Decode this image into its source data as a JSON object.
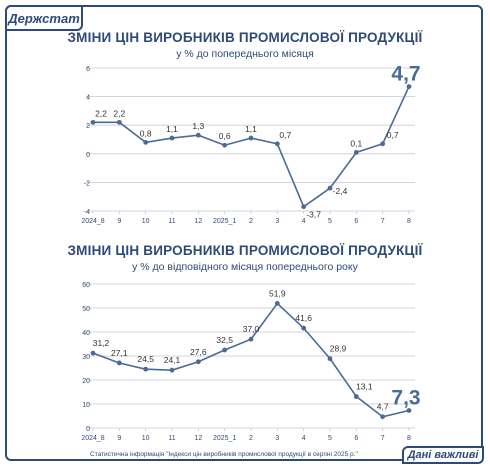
{
  "brand": "Держстат",
  "footnote": "Статистична інформація \"Індекси цін виробників промислової продукції в серпні 2025 р.\"",
  "badge": "Дані важливі",
  "colors": {
    "primary": "#2e4a78",
    "line": "#4a6b95",
    "grid": "#c5c9d2"
  },
  "chart_data": [
    {
      "type": "line",
      "title": "ЗМІНИ ЦІН ВИРОБНИКІВ ПРОМИСЛОВОЇ ПРОДУКЦІЇ",
      "subtitle": "у % до попереднього місяця",
      "categories": [
        "2024_8",
        "9",
        "10",
        "11",
        "12",
        "2025_1",
        "2",
        "3",
        "4",
        "5",
        "6",
        "7",
        "8"
      ],
      "values": [
        2.2,
        2.2,
        0.8,
        1.1,
        1.3,
        0.6,
        1.1,
        0.7,
        -3.7,
        -2.4,
        0.1,
        0.7,
        4.7
      ],
      "labels": [
        "2,2",
        "2,2",
        "0,8",
        "1,1",
        "1,3",
        "0,6",
        "1,1",
        "0,7",
        "-3,7",
        "-2,4",
        "0,1",
        "0,7",
        "4,7"
      ],
      "yticks": [
        -4,
        -2,
        0,
        2,
        4,
        6
      ],
      "ylim": [
        -4,
        6
      ],
      "grid": true,
      "highlight_last": true
    },
    {
      "type": "line",
      "title": "ЗМІНИ ЦІН ВИРОБНИКІВ ПРОМИСЛОВОЇ ПРОДУКЦІЇ",
      "subtitle": "у % до відповідного місяця попереднього року",
      "categories": [
        "2024_8",
        "9",
        "10",
        "11",
        "12",
        "2025_1",
        "2",
        "3",
        "4",
        "5",
        "6",
        "7",
        "8"
      ],
      "values": [
        31.2,
        27.1,
        24.5,
        24.1,
        27.6,
        32.5,
        37.0,
        51.9,
        41.6,
        28.9,
        13.1,
        4.7,
        7.3
      ],
      "labels": [
        "31,2",
        "27,1",
        "24,5",
        "24,1",
        "27,6",
        "32,5",
        "37,0",
        "51,9",
        "41,6",
        "28,9",
        "13,1",
        "4,7",
        "7,3"
      ],
      "yticks": [
        0,
        10,
        20,
        30,
        40,
        50,
        60
      ],
      "ylim": [
        0,
        60
      ],
      "grid": true,
      "highlight_last": true
    }
  ]
}
